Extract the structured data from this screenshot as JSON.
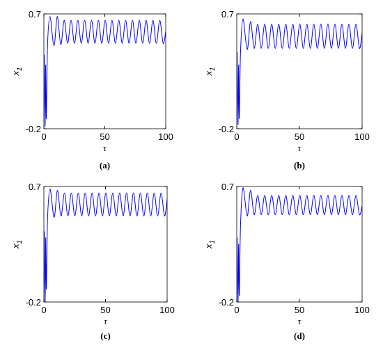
{
  "chart_data": [
    {
      "type": "line",
      "caption": "(a)",
      "xlabel": "τ",
      "ylabel": "x1",
      "color": "#0000ff",
      "xlim": [
        0,
        100
      ],
      "ylim": [
        -0.2,
        0.7
      ],
      "xticks": [
        0,
        50,
        100
      ],
      "yticks": [
        -0.2,
        0.7
      ],
      "x": [
        0.3,
        1,
        1.5,
        2,
        3,
        5,
        8.3,
        11,
        13.9,
        16.7,
        19.5,
        22.3,
        25.1,
        27.9,
        30.7,
        33.5,
        36.3,
        39.1,
        41.9,
        44.7,
        47.5,
        50.3,
        53.1,
        55.9,
        58.7,
        61.5,
        64.3,
        67.1,
        69.9,
        72.7,
        75.5,
        78.3,
        81.1,
        83.9,
        86.7,
        89.5,
        92.3,
        95.1,
        97.9,
        100
      ],
      "values": [
        0.38,
        -0.18,
        0.3,
        -0.12,
        0.45,
        0.68,
        0.45,
        0.68,
        0.46,
        0.65,
        0.47,
        0.65,
        0.47,
        0.65,
        0.47,
        0.65,
        0.47,
        0.65,
        0.47,
        0.65,
        0.47,
        0.65,
        0.47,
        0.65,
        0.47,
        0.65,
        0.47,
        0.65,
        0.47,
        0.65,
        0.47,
        0.65,
        0.47,
        0.65,
        0.47,
        0.65,
        0.47,
        0.65,
        0.47,
        0.56
      ]
    },
    {
      "type": "line",
      "caption": "(b)",
      "xlabel": "τ",
      "ylabel": "x1",
      "color": "#0000ff",
      "xlim": [
        0,
        100
      ],
      "ylim": [
        -0.2,
        0.7
      ],
      "xticks": [
        0,
        50,
        100
      ],
      "yticks": [
        -0.2,
        0.7
      ],
      "x": [
        0.3,
        1,
        1.5,
        2,
        3,
        5,
        8.3,
        11,
        13.9,
        16.7,
        19.5,
        22.3,
        25.1,
        27.9,
        30.7,
        33.5,
        36.3,
        39.1,
        41.9,
        44.7,
        47.5,
        50.3,
        53.1,
        55.9,
        58.7,
        61.5,
        64.3,
        67.1,
        69.9,
        72.7,
        75.5,
        78.3,
        81.1,
        83.9,
        86.7,
        89.5,
        92.3,
        95.1,
        97.9,
        100
      ],
      "values": [
        0.4,
        -0.17,
        0.3,
        -0.12,
        0.4,
        0.66,
        0.42,
        0.64,
        0.43,
        0.62,
        0.43,
        0.62,
        0.43,
        0.62,
        0.43,
        0.62,
        0.43,
        0.62,
        0.43,
        0.62,
        0.43,
        0.62,
        0.43,
        0.62,
        0.43,
        0.62,
        0.43,
        0.62,
        0.43,
        0.62,
        0.43,
        0.62,
        0.43,
        0.62,
        0.43,
        0.62,
        0.43,
        0.62,
        0.43,
        0.55
      ]
    },
    {
      "type": "line",
      "caption": "(c)",
      "xlabel": "τ",
      "ylabel": "x1",
      "color": "#0000ff",
      "xlim": [
        0,
        100
      ],
      "ylim": [
        -0.2,
        0.7
      ],
      "xticks": [
        0,
        50,
        100
      ],
      "yticks": [
        -0.2,
        0.7
      ],
      "x": [
        0.3,
        1,
        1.5,
        2,
        3,
        5,
        8.3,
        11,
        13.9,
        16.7,
        19.5,
        22.3,
        25.1,
        27.9,
        30.7,
        33.5,
        36.3,
        39.1,
        41.9,
        44.7,
        47.5,
        50.3,
        53.1,
        55.9,
        58.7,
        61.5,
        64.3,
        67.1,
        69.9,
        72.7,
        75.5,
        78.3,
        81.1,
        83.9,
        86.7,
        89.5,
        92.3,
        95.1,
        97.9,
        100
      ],
      "values": [
        0.35,
        -0.2,
        0.3,
        -0.1,
        0.45,
        0.68,
        0.46,
        0.67,
        0.47,
        0.65,
        0.47,
        0.65,
        0.47,
        0.65,
        0.47,
        0.65,
        0.47,
        0.65,
        0.47,
        0.65,
        0.47,
        0.65,
        0.47,
        0.65,
        0.47,
        0.65,
        0.47,
        0.65,
        0.47,
        0.65,
        0.47,
        0.65,
        0.47,
        0.65,
        0.47,
        0.65,
        0.47,
        0.65,
        0.47,
        0.6
      ]
    },
    {
      "type": "line",
      "caption": "(d)",
      "xlabel": "τ",
      "ylabel": "x1",
      "color": "#0000ff",
      "xlim": [
        0,
        100
      ],
      "ylim": [
        -0.2,
        0.7
      ],
      "xticks": [
        0,
        50,
        100
      ],
      "yticks": [
        -0.2,
        0.7
      ],
      "x": [
        0.3,
        1,
        1.5,
        2,
        3,
        5,
        8.3,
        11,
        13.9,
        16.7,
        19.5,
        22.3,
        25.1,
        27.9,
        30.7,
        33.5,
        36.3,
        39.1,
        41.9,
        44.7,
        47.5,
        50.3,
        53.1,
        55.9,
        58.7,
        61.5,
        64.3,
        67.1,
        69.9,
        72.7,
        75.5,
        78.3,
        81.1,
        83.9,
        86.7,
        89.5,
        92.3,
        95.1,
        97.9,
        100
      ],
      "values": [
        0.3,
        -0.2,
        0.25,
        -0.15,
        0.4,
        0.69,
        0.47,
        0.67,
        0.48,
        0.63,
        0.48,
        0.63,
        0.48,
        0.63,
        0.48,
        0.63,
        0.48,
        0.63,
        0.48,
        0.63,
        0.48,
        0.63,
        0.48,
        0.63,
        0.48,
        0.63,
        0.48,
        0.63,
        0.48,
        0.63,
        0.48,
        0.63,
        0.48,
        0.63,
        0.48,
        0.63,
        0.48,
        0.63,
        0.48,
        0.55
      ]
    }
  ]
}
